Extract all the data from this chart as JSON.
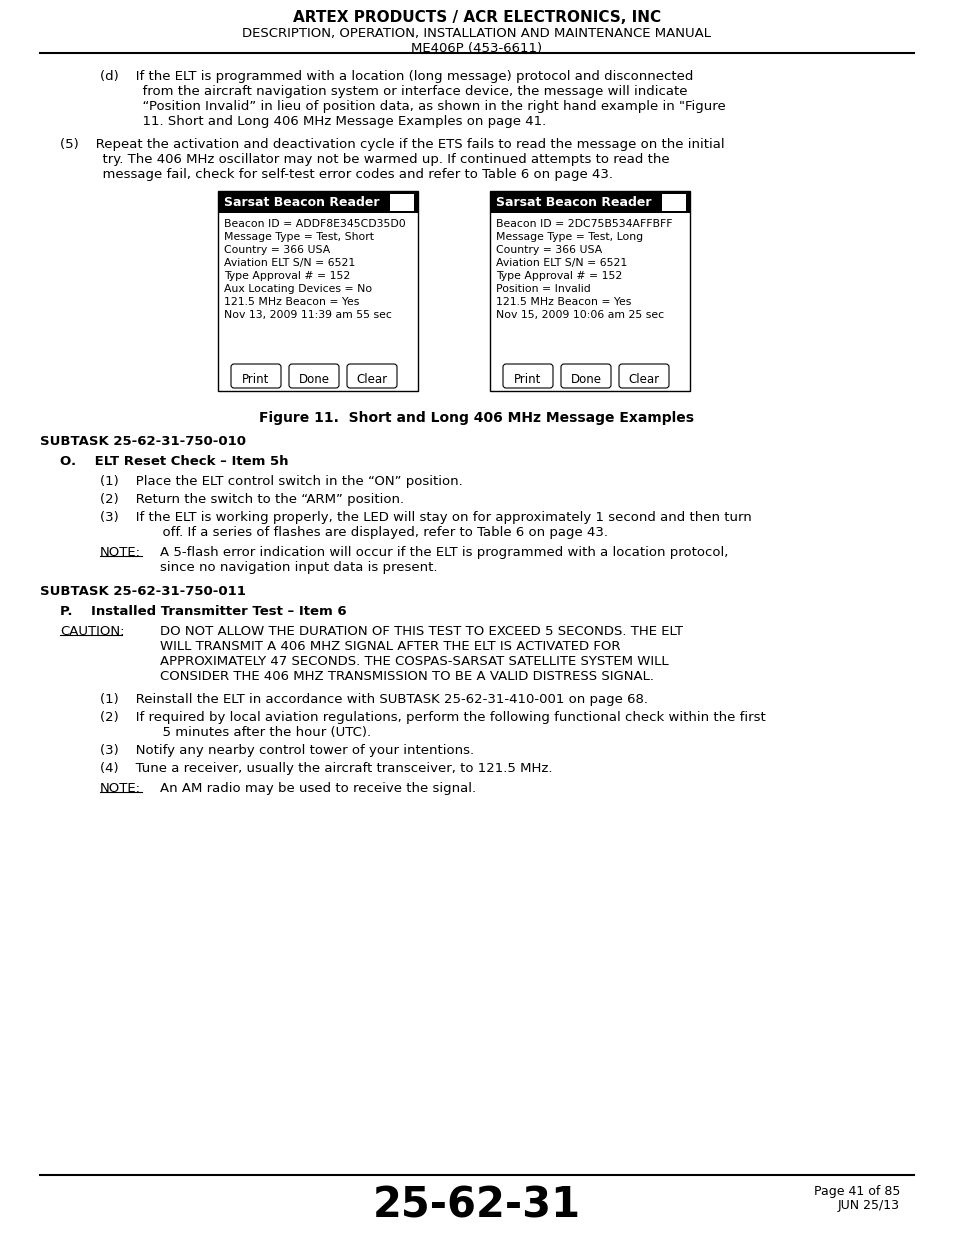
{
  "header_line1": "ARTEX PRODUCTS / ACR ELECTRONICS, INC",
  "header_line2": "DESCRIPTION, OPERATION, INSTALLATION AND MAINTENANCE MANUAL",
  "header_line3": "ME406P (453-6611)",
  "footer_code": "25-62-31",
  "footer_page": "Page 41 of 85",
  "footer_date": "JUN 25/13",
  "bg_color": "#ffffff",
  "text_color": "#000000",
  "left_box": {
    "title": "Sarsat Beacon Reader",
    "lines": [
      "Beacon ID = ADDF8E345CD35D0",
      "Message Type = Test, Short",
      "Country = 366 USA",
      "Aviation ELT S/N = 6521",
      "Type Approval # = 152",
      "Aux Locating Devices = No",
      "121.5 MHz Beacon = Yes",
      "Nov 13, 2009 11:39 am 55 sec"
    ],
    "buttons": [
      "Print",
      "Done",
      "Clear"
    ]
  },
  "right_box": {
    "title": "Sarsat Beacon Reader",
    "lines": [
      "Beacon ID = 2DC75B534AFFBFF",
      "Message Type = Test, Long",
      "Country = 366 USA",
      "Aviation ELT S/N = 6521",
      "Type Approval # = 152",
      "Position = Invalid",
      "121.5 MHz Beacon = Yes",
      "Nov 15, 2009 10:06 am 25 sec"
    ],
    "buttons": [
      "Print",
      "Done",
      "Clear"
    ]
  },
  "figure_caption": "Figure 11.  Short and Long 406 MHz Message Examples",
  "subtask1": "SUBTASK 25-62-31-750-010",
  "subtask2": "SUBTASK 25-62-31-750-011",
  "para_d_lines": [
    "(d)    If the ELT is programmed with a location (long message) protocol and disconnected",
    "          from the aircraft navigation system or interface device, the message will indicate",
    "          “Position Invalid” in lieu of position data, as shown in the right hand example in \"Figure",
    "          11. Short and Long 406 MHz Message Examples on page 41."
  ],
  "para5_lines": [
    "(5)    Repeat the activation and deactivation cycle if the ETS fails to read the message on the initial",
    "          try. The 406 MHz oscillator may not be warmed up. If continued attempts to read the",
    "          message fail, check for self-test error codes and refer to Table 6 on page 43."
  ],
  "section_O": "O.    ELT Reset Check – Item 5h",
  "steps_O": [
    "(1)    Place the ELT control switch in the “ON” position.",
    "(2)    Return the switch to the “ARM” position."
  ],
  "step_O3_line1": "(3)    If the ELT is working properly, the LED will stay on for approximately 1 second and then turn",
  "step_O3_line2": "          off. If a series of flashes are displayed, refer to Table 6 on page 43.",
  "note_O_line1": "A 5-flash error indication will occur if the ELT is programmed with a location protocol,",
  "note_O_line2": "since no navigation input data is present.",
  "section_P": "P.    Installed Transmitter Test – Item 6",
  "caution_lines": [
    "DO NOT ALLOW THE DURATION OF THIS TEST TO EXCEED 5 SECONDS. THE ELT",
    "WILL TRANSMIT A 406 MHZ SIGNAL AFTER THE ELT IS ACTIVATED FOR",
    "APPROXIMATELY 47 SECONDS. THE COSPAS-SARSAT SATELLITE SYSTEM WILL",
    "CONSIDER THE 406 MHZ TRANSMISSION TO BE A VALID DISTRESS SIGNAL."
  ],
  "step_P1": "(1)    Reinstall the ELT in accordance with SUBTASK 25-62-31-410-001 on page 68.",
  "step_P2_line1": "(2)    If required by local aviation regulations, perform the following functional check within the first",
  "step_P2_line2": "          5 minutes after the hour (UTC).",
  "step_P3": "(3)    Notify any nearby control tower of your intentions.",
  "step_P4": "(4)    Tune a receiver, usually the aircraft transceiver, to 121.5 MHz.",
  "note_P": "An AM radio may be used to receive the signal."
}
